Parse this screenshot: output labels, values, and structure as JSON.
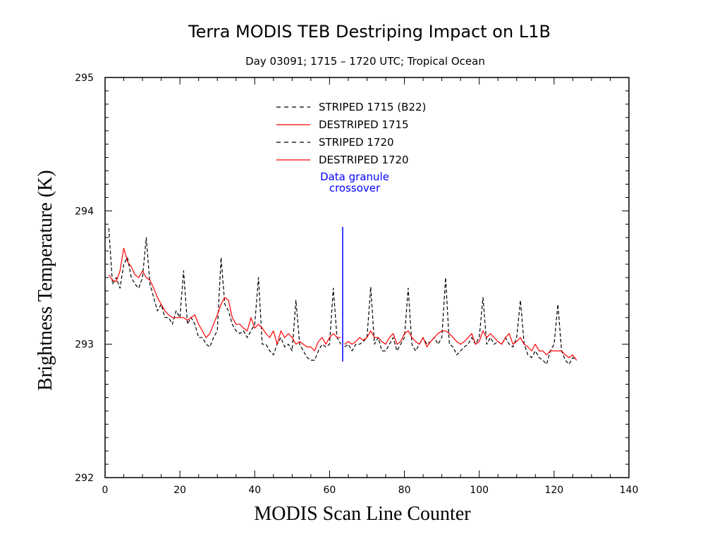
{
  "chart_data": {
    "type": "line",
    "title": "Terra MODIS TEB Destriping Impact on L1B",
    "subtitle": "Day 03091; 1715 – 1720 UTC; Tropical Ocean",
    "xlabel": "MODIS Scan Line Counter",
    "ylabel": "Brightness Temperature (K)",
    "xlim": [
      0,
      140
    ],
    "ylim": [
      292,
      295
    ],
    "xticks": [
      0,
      20,
      40,
      60,
      80,
      100,
      120,
      140
    ],
    "yticks": [
      292,
      293,
      294,
      295
    ],
    "legend_position": "top-center",
    "series": [
      {
        "name": "STRIPED 1715 (B22)",
        "color": "#000000",
        "dash": "dashed",
        "x": [
          1,
          2,
          3,
          4,
          5,
          6,
          7,
          8,
          9,
          10,
          11,
          12,
          13,
          14,
          15,
          16,
          17,
          18,
          19,
          20,
          21,
          22,
          23,
          24,
          25,
          26,
          27,
          28,
          29,
          30,
          31,
          32,
          33,
          34,
          35,
          36,
          37,
          38,
          39,
          40,
          41,
          42,
          43,
          44,
          45,
          46,
          47,
          48,
          49,
          50,
          51,
          52,
          53,
          54,
          55,
          56,
          57,
          58,
          59,
          60,
          61,
          62,
          63
        ],
        "y": [
          293.87,
          293.45,
          293.5,
          293.42,
          293.6,
          293.65,
          293.5,
          293.45,
          293.42,
          293.5,
          293.8,
          293.45,
          293.35,
          293.25,
          293.3,
          293.2,
          293.2,
          293.15,
          293.25,
          293.2,
          293.55,
          293.15,
          293.2,
          293.15,
          293.05,
          293.05,
          293.0,
          292.98,
          293.05,
          293.1,
          293.65,
          293.3,
          293.25,
          293.15,
          293.1,
          293.08,
          293.1,
          293.05,
          293.1,
          293.15,
          293.5,
          293.0,
          293.0,
          292.95,
          292.92,
          293.0,
          293.05,
          292.98,
          293.0,
          292.95,
          293.33,
          293.0,
          292.95,
          292.9,
          292.88,
          292.88,
          292.95,
          293.0,
          292.98,
          293.0,
          293.42,
          293.05,
          293.0
        ]
      },
      {
        "name": "DESTRIPED 1715",
        "color": "#ff0000",
        "dash": "solid",
        "x": [
          1,
          2,
          3,
          4,
          5,
          6,
          7,
          8,
          9,
          10,
          11,
          12,
          13,
          14,
          15,
          16,
          17,
          18,
          19,
          20,
          21,
          22,
          23,
          24,
          25,
          26,
          27,
          28,
          29,
          30,
          31,
          32,
          33,
          34,
          35,
          36,
          37,
          38,
          39,
          40,
          41,
          42,
          43,
          44,
          45,
          46,
          47,
          48,
          49,
          50,
          51,
          52,
          53,
          54,
          55,
          56,
          57,
          58,
          59,
          60,
          61,
          62,
          63
        ],
        "y": [
          293.52,
          293.48,
          293.47,
          293.55,
          293.72,
          293.62,
          293.58,
          293.52,
          293.5,
          293.55,
          293.5,
          293.48,
          293.42,
          293.35,
          293.3,
          293.25,
          293.22,
          293.2,
          293.2,
          293.2,
          293.2,
          293.18,
          293.2,
          293.22,
          293.15,
          293.1,
          293.05,
          293.08,
          293.15,
          293.22,
          293.3,
          293.35,
          293.33,
          293.2,
          293.15,
          293.15,
          293.12,
          293.1,
          293.2,
          293.12,
          293.15,
          293.12,
          293.08,
          293.05,
          293.1,
          293.0,
          293.1,
          293.05,
          293.08,
          293.05,
          293.0,
          293.02,
          293.0,
          292.98,
          292.98,
          292.95,
          293.02,
          293.05,
          293.0,
          293.05,
          293.08,
          293.05,
          293.05
        ]
      },
      {
        "name": "STRIPED 1720",
        "color": "#000000",
        "dash": "dashed",
        "x": [
          64,
          65,
          66,
          67,
          68,
          69,
          70,
          71,
          72,
          73,
          74,
          75,
          76,
          77,
          78,
          79,
          80,
          81,
          82,
          83,
          84,
          85,
          86,
          87,
          88,
          89,
          90,
          91,
          92,
          93,
          94,
          95,
          96,
          97,
          98,
          99,
          100,
          101,
          102,
          103,
          104,
          105,
          106,
          107,
          108,
          109,
          110,
          111,
          112,
          113,
          114,
          115,
          116,
          117,
          118,
          119,
          120,
          121,
          122,
          123,
          124,
          125,
          126
        ],
        "y": [
          292.98,
          293.0,
          292.95,
          293.0,
          293.0,
          293.02,
          293.05,
          293.43,
          293.0,
          293.05,
          292.95,
          292.95,
          293.0,
          293.05,
          292.95,
          293.0,
          293.05,
          293.42,
          293.0,
          292.95,
          293.0,
          293.05,
          293.0,
          293.02,
          293.05,
          293.0,
          293.05,
          293.5,
          293.0,
          292.98,
          292.92,
          292.95,
          292.98,
          293.0,
          293.05,
          293.0,
          293.05,
          293.35,
          293.0,
          293.05,
          293.0,
          293.02,
          293.0,
          293.05,
          293.0,
          292.98,
          293.05,
          293.33,
          293.0,
          292.92,
          292.9,
          292.95,
          292.9,
          292.88,
          292.85,
          292.95,
          293.0,
          293.3,
          292.95,
          292.88,
          292.85,
          292.9,
          292.88
        ]
      },
      {
        "name": "DESTRIPED 1720",
        "color": "#ff0000",
        "dash": "solid",
        "x": [
          64,
          65,
          66,
          67,
          68,
          69,
          70,
          71,
          72,
          73,
          74,
          75,
          76,
          77,
          78,
          79,
          80,
          81,
          82,
          83,
          84,
          85,
          86,
          87,
          88,
          89,
          90,
          91,
          92,
          93,
          94,
          95,
          96,
          97,
          98,
          99,
          100,
          101,
          102,
          103,
          104,
          105,
          106,
          107,
          108,
          109,
          110,
          111,
          112,
          113,
          114,
          115,
          116,
          117,
          118,
          119,
          120,
          121,
          122,
          123,
          124,
          125,
          126
        ],
        "y": [
          293.0,
          293.02,
          293.0,
          293.02,
          293.05,
          293.03,
          293.05,
          293.1,
          293.05,
          293.05,
          293.02,
          293.0,
          293.05,
          293.08,
          293.0,
          293.02,
          293.08,
          293.1,
          293.05,
          293.02,
          293.0,
          293.05,
          292.98,
          293.02,
          293.05,
          293.08,
          293.1,
          293.1,
          293.08,
          293.05,
          293.02,
          293.0,
          293.02,
          293.05,
          293.08,
          293.0,
          293.02,
          293.1,
          293.05,
          293.08,
          293.05,
          293.02,
          293.0,
          293.05,
          293.08,
          293.0,
          293.02,
          293.05,
          293.0,
          292.98,
          292.95,
          293.0,
          292.95,
          292.95,
          292.92,
          292.95,
          292.95,
          292.95,
          292.95,
          292.92,
          292.9,
          292.92,
          292.88
        ]
      }
    ],
    "annotations": [
      {
        "text_lines": [
          "Data granule",
          "crossover"
        ],
        "color": "#0000ff",
        "x": 63.5,
        "y_range": [
          292.87,
          293.88
        ]
      }
    ]
  }
}
